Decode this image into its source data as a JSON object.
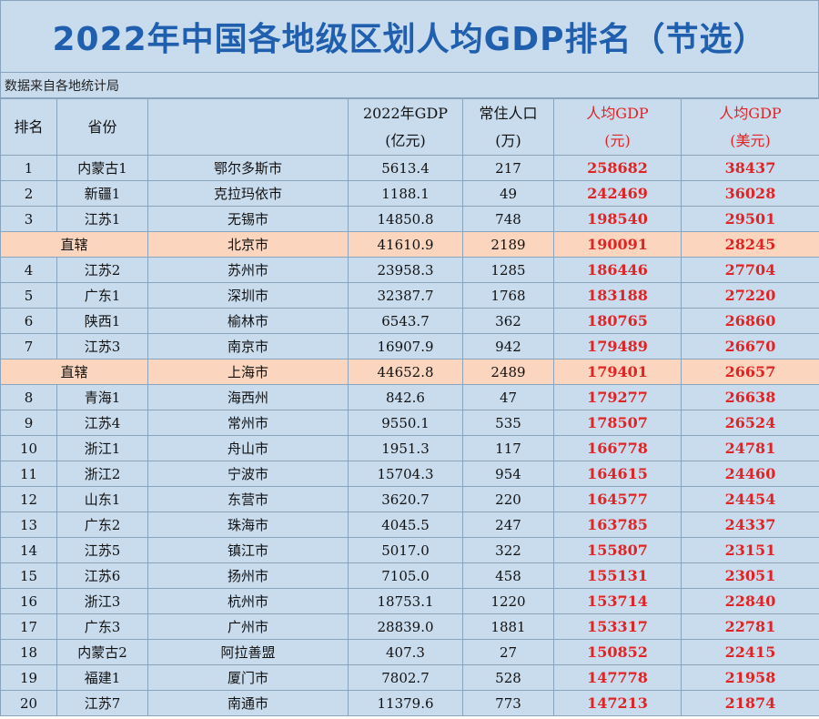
{
  "title": "2022年中国各地级区划人均GDP排名（节选）",
  "source": "数据来自各地统计局",
  "headers": {
    "rank": "排名",
    "province": "省份",
    "city": "",
    "gdp_line1": "2022年GDP",
    "gdp_line2": "(亿元)",
    "pop_line1": "常住人口",
    "pop_line2": "(万)",
    "pc_yuan_line1": "人均GDP",
    "pc_yuan_line2": "(元)",
    "pc_usd_line1": "人均GDP",
    "pc_usd_line2": "(美元)"
  },
  "rows": [
    {
      "rank": "1",
      "province": "内蒙古1",
      "city": "鄂尔多斯市",
      "gdp": "5613.4",
      "pop": "217",
      "pc_yuan": "258682",
      "pc_usd": "38437"
    },
    {
      "rank": "2",
      "province": "新疆1",
      "city": "克拉玛依市",
      "gdp": "1188.1",
      "pop": "49",
      "pc_yuan": "242469",
      "pc_usd": "36028"
    },
    {
      "rank": "3",
      "province": "江苏1",
      "city": "无锡市",
      "gdp": "14850.8",
      "pop": "748",
      "pc_yuan": "198540",
      "pc_usd": "29501"
    },
    {
      "direct": true,
      "label": "直辖",
      "city": "北京市",
      "gdp": "41610.9",
      "pop": "2189",
      "pc_yuan": "190091",
      "pc_usd": "28245"
    },
    {
      "rank": "4",
      "province": "江苏2",
      "city": "苏州市",
      "gdp": "23958.3",
      "pop": "1285",
      "pc_yuan": "186446",
      "pc_usd": "27704"
    },
    {
      "rank": "5",
      "province": "广东1",
      "city": "深圳市",
      "gdp": "32387.7",
      "pop": "1768",
      "pc_yuan": "183188",
      "pc_usd": "27220"
    },
    {
      "rank": "6",
      "province": "陕西1",
      "city": "榆林市",
      "gdp": "6543.7",
      "pop": "362",
      "pc_yuan": "180765",
      "pc_usd": "26860"
    },
    {
      "rank": "7",
      "province": "江苏3",
      "city": "南京市",
      "gdp": "16907.9",
      "pop": "942",
      "pc_yuan": "179489",
      "pc_usd": "26670"
    },
    {
      "direct": true,
      "label": "直辖",
      "city": "上海市",
      "gdp": "44652.8",
      "pop": "2489",
      "pc_yuan": "179401",
      "pc_usd": "26657"
    },
    {
      "rank": "8",
      "province": "青海1",
      "city": "海西州",
      "gdp": "842.6",
      "pop": "47",
      "pc_yuan": "179277",
      "pc_usd": "26638"
    },
    {
      "rank": "9",
      "province": "江苏4",
      "city": "常州市",
      "gdp": "9550.1",
      "pop": "535",
      "pc_yuan": "178507",
      "pc_usd": "26524"
    },
    {
      "rank": "10",
      "province": "浙江1",
      "city": "舟山市",
      "gdp": "1951.3",
      "pop": "117",
      "pc_yuan": "166778",
      "pc_usd": "24781"
    },
    {
      "rank": "11",
      "province": "浙江2",
      "city": "宁波市",
      "gdp": "15704.3",
      "pop": "954",
      "pc_yuan": "164615",
      "pc_usd": "24460"
    },
    {
      "rank": "12",
      "province": "山东1",
      "city": "东营市",
      "gdp": "3620.7",
      "pop": "220",
      "pc_yuan": "164577",
      "pc_usd": "24454"
    },
    {
      "rank": "13",
      "province": "广东2",
      "city": "珠海市",
      "gdp": "4045.5",
      "pop": "247",
      "pc_yuan": "163785",
      "pc_usd": "24337"
    },
    {
      "rank": "14",
      "province": "江苏5",
      "city": "镇江市",
      "gdp": "5017.0",
      "pop": "322",
      "pc_yuan": "155807",
      "pc_usd": "23151"
    },
    {
      "rank": "15",
      "province": "江苏6",
      "city": "扬州市",
      "gdp": "7105.0",
      "pop": "458",
      "pc_yuan": "155131",
      "pc_usd": "23051"
    },
    {
      "rank": "16",
      "province": "浙江3",
      "city": "杭州市",
      "gdp": "18753.1",
      "pop": "1220",
      "pc_yuan": "153714",
      "pc_usd": "22840"
    },
    {
      "rank": "17",
      "province": "广东3",
      "city": "广州市",
      "gdp": "28839.0",
      "pop": "1881",
      "pc_yuan": "153317",
      "pc_usd": "22781"
    },
    {
      "rank": "18",
      "province": "内蒙古2",
      "city": "阿拉善盟",
      "gdp": "407.3",
      "pop": "27",
      "pc_yuan": "150852",
      "pc_usd": "22415"
    },
    {
      "rank": "19",
      "province": "福建1",
      "city": "厦门市",
      "gdp": "7802.7",
      "pop": "528",
      "pc_yuan": "147778",
      "pc_usd": "21958"
    },
    {
      "rank": "20",
      "province": "江苏7",
      "city": "南通市",
      "gdp": "11379.6",
      "pop": "773",
      "pc_yuan": "147213",
      "pc_usd": "21874"
    }
  ]
}
